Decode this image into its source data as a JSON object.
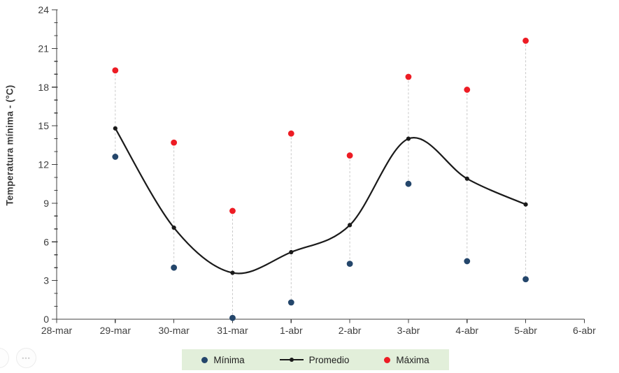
{
  "figure": {
    "ylabel": "Temperatura mínima - (°C)"
  },
  "legend": {
    "background": "#e2efda",
    "items": [
      {
        "label": "Mínima",
        "marker": "dot",
        "color": "#24466b"
      },
      {
        "label": "Promedio",
        "marker": "line-dot",
        "color": "#1a1a1a"
      },
      {
        "label": "Máxima",
        "marker": "dot",
        "color": "#ed1c24"
      }
    ]
  },
  "chart_data": {
    "type": "line",
    "xlabel": "",
    "ylabel": "Temperatura mínima - (°C)",
    "x_axis_ticks": [
      "28-mar",
      "29-mar",
      "30-mar",
      "31-mar",
      "1-abr",
      "2-abr",
      "3-abr",
      "4-abr",
      "5-abr",
      "6-abr"
    ],
    "categories": [
      "29-mar",
      "30-mar",
      "31-mar",
      "1-abr",
      "2-abr",
      "3-abr",
      "4-abr",
      "5-abr"
    ],
    "ylim": [
      0,
      24
    ],
    "y_major_step": 3,
    "y_minor_step": 1,
    "grid": false,
    "legend_position": "bottom",
    "high_low_lines": true,
    "high_low_line_color": "#c9c9c9",
    "axis_color": "#404040",
    "series": [
      {
        "name": "Mínima",
        "type": "scatter",
        "color": "#24466b",
        "values": [
          12.6,
          4.0,
          0.1,
          1.3,
          4.3,
          10.5,
          4.5,
          3.1
        ]
      },
      {
        "name": "Promedio",
        "type": "smooth_line",
        "color": "#1a1a1a",
        "values": [
          14.8,
          7.1,
          3.6,
          5.2,
          7.3,
          14.0,
          10.9,
          8.9
        ]
      },
      {
        "name": "Máxima",
        "type": "scatter",
        "color": "#ed1c24",
        "values": [
          19.3,
          13.7,
          8.4,
          14.4,
          12.7,
          18.8,
          17.8,
          21.6
        ]
      }
    ]
  },
  "viewer_controls": {
    "more_icon": "•••"
  }
}
